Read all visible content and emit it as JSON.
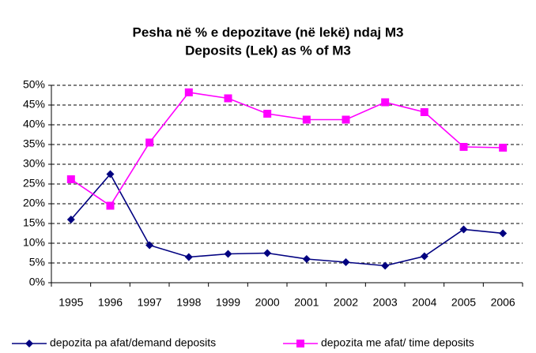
{
  "chart_data": {
    "type": "line",
    "title": "Pesha në % e depozitave (në lekë) ndaj M3",
    "subtitle": "Deposits (Lek) as % of M3",
    "categories": [
      "1995",
      "1996",
      "1997",
      "1998",
      "1999",
      "2000",
      "2001",
      "2002",
      "2003",
      "2004",
      "2005",
      "2006"
    ],
    "series": [
      {
        "name": "depozita pa afat/demand deposits",
        "color": "#000080",
        "marker": "diamond",
        "values": [
          16,
          27.5,
          9.5,
          6.5,
          7.3,
          7.5,
          6,
          5.2,
          4.3,
          6.7,
          13.5,
          12.5
        ]
      },
      {
        "name": "depozita me afat/ time deposits",
        "color": "#ff00ff",
        "marker": "square",
        "values": [
          26.2,
          19.5,
          35.5,
          48.2,
          46.7,
          42.8,
          41.3,
          41.3,
          45.7,
          43.2,
          34.4,
          34.2
        ]
      }
    ],
    "ylim": [
      0,
      50
    ],
    "yticks": [
      {
        "value": 0,
        "label": "0%"
      },
      {
        "value": 5,
        "label": "5%"
      },
      {
        "value": 10,
        "label": "10%"
      },
      {
        "value": 15,
        "label": "15%"
      },
      {
        "value": 20,
        "label": "20%"
      },
      {
        "value": 25,
        "label": "25%"
      },
      {
        "value": 30,
        "label": "30%"
      },
      {
        "value": 35,
        "label": "35%"
      },
      {
        "value": 40,
        "label": "40%"
      },
      {
        "value": 45,
        "label": "45%"
      },
      {
        "value": 50,
        "label": "50%"
      }
    ],
    "grid": true,
    "legend": "bottom"
  }
}
